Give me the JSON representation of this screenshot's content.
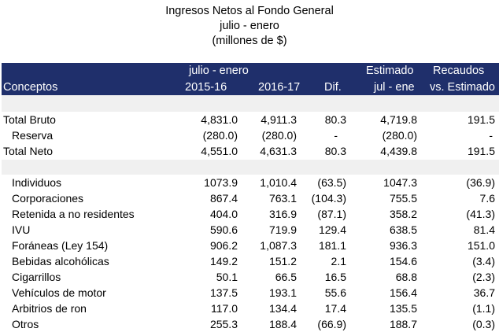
{
  "title": {
    "line1": "Ingresos Netos al Fondo General",
    "line2": "julio - enero",
    "line3": "(millones de $)"
  },
  "header": {
    "group_julio_enero": "julio - enero",
    "estimado": "Estimado",
    "recaudos": "Recaudos",
    "conceptos": "Conceptos",
    "y2015": "2015-16",
    "y2016": "2016-17",
    "dif": "Dif.",
    "jul_ene": "jul - ene",
    "vs_estimado": "vs. Estimado"
  },
  "rows": [
    {
      "concept": "Total Bruto",
      "y2015": "4,831.0",
      "y2016": "4,911.3",
      "dif": "80.3",
      "estimado": "4,719.8",
      "recaudos": "191.5"
    },
    {
      "concept": "Reserva",
      "y2015": "(280.0)",
      "y2016": "(280.0)",
      "dif": "-",
      "estimado": "(280.0)",
      "recaudos": "-"
    },
    {
      "concept": "Total Neto",
      "y2015": "4,551.0",
      "y2016": "4,631.3",
      "dif": "80.3",
      "estimado": "4,439.8",
      "recaudos": "191.5"
    },
    {
      "concept": "Individuos",
      "y2015": "1073.9",
      "y2016": "1,010.4",
      "dif": "(63.5)",
      "estimado": "1047.3",
      "recaudos": "(36.9)"
    },
    {
      "concept": "Corporaciones",
      "y2015": "867.4",
      "y2016": "763.1",
      "dif": "(104.3)",
      "estimado": "755.5",
      "recaudos": "7.6"
    },
    {
      "concept": "Retenida a no residentes",
      "y2015": "404.0",
      "y2016": "316.9",
      "dif": "(87.1)",
      "estimado": "358.2",
      "recaudos": "(41.3)"
    },
    {
      "concept": "IVU",
      "y2015": "590.6",
      "y2016": "719.9",
      "dif": "129.4",
      "estimado": "638.5",
      "recaudos": "81.4"
    },
    {
      "concept": "Foráneas (Ley 154)",
      "y2015": "906.2",
      "y2016": "1,087.3",
      "dif": "181.1",
      "estimado": "936.3",
      "recaudos": "151.0"
    },
    {
      "concept": "Bebidas alcohólicas",
      "y2015": "149.2",
      "y2016": "151.2",
      "dif": "2.1",
      "estimado": "154.6",
      "recaudos": "(3.4)"
    },
    {
      "concept": "Cigarrillos",
      "y2015": "50.1",
      "y2016": "66.5",
      "dif": "16.5",
      "estimado": "68.8",
      "recaudos": "(2.3)"
    },
    {
      "concept": "Vehículos de motor",
      "y2015": "137.5",
      "y2016": "193.1",
      "dif": "55.6",
      "estimado": "156.4",
      "recaudos": "36.7"
    },
    {
      "concept": "Arbitrios de ron",
      "y2015": "117.0",
      "y2016": "134.4",
      "dif": "17.4",
      "estimado": "135.5",
      "recaudos": "(1.1)"
    },
    {
      "concept": "Otros",
      "y2015": "255.3",
      "y2016": "188.4",
      "dif": "(66.9)",
      "estimado": "188.7",
      "recaudos": "(0.3)"
    }
  ]
}
